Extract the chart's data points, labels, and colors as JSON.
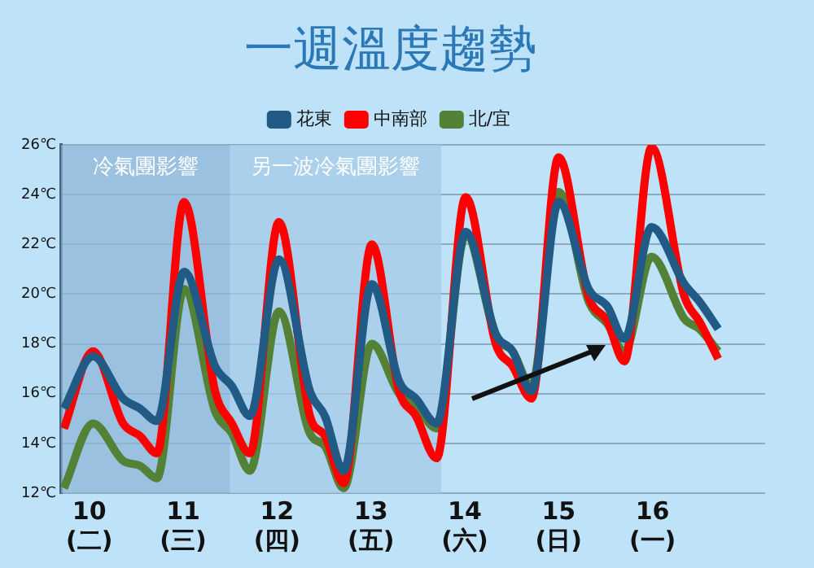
{
  "chart_data": {
    "type": "line",
    "title": "一週溫度趨勢",
    "x": [
      9.73,
      10.04,
      10.36,
      10.54,
      10.72,
      11.01,
      11.34,
      11.52,
      11.71,
      12.02,
      12.35,
      12.51,
      12.71,
      13.01,
      13.3,
      13.48,
      13.7,
      14.01,
      14.33,
      14.51,
      14.71,
      15.0,
      15.32,
      15.52,
      15.7,
      15.99,
      16.34,
      16.5,
      16.7
    ],
    "series": [
      {
        "name": "花東",
        "color": "#215a85",
        "values": [
          15.4,
          17.5,
          15.8,
          15.4,
          14.9,
          20.9,
          17.1,
          16.3,
          15.1,
          21.4,
          16.1,
          15.1,
          12.9,
          20.4,
          16.5,
          15.8,
          14.8,
          22.5,
          18.4,
          17.7,
          16.1,
          23.7,
          20.2,
          19.5,
          18.2,
          22.7,
          20.4,
          19.7,
          18.6
        ]
      },
      {
        "name": "中南部",
        "color": "#ff0000",
        "values": [
          14.6,
          17.7,
          14.8,
          14.3,
          13.6,
          23.7,
          16.1,
          14.8,
          13.6,
          22.9,
          15.1,
          14.3,
          12.4,
          22.0,
          16.1,
          15.1,
          13.4,
          23.9,
          18.0,
          17.1,
          15.8,
          25.5,
          19.9,
          18.9,
          17.3,
          25.9,
          19.9,
          18.9,
          17.4
        ]
      },
      {
        "name": "北/宜",
        "color": "#538135",
        "values": [
          12.2,
          14.8,
          13.3,
          13.1,
          12.6,
          20.2,
          15.3,
          14.4,
          12.9,
          19.3,
          14.4,
          13.9,
          12.2,
          18.0,
          16.0,
          15.5,
          14.6,
          22.4,
          18.3,
          17.7,
          16.3,
          24.1,
          19.7,
          18.8,
          17.7,
          21.5,
          19.0,
          18.6,
          17.7
        ]
      }
    ],
    "xlim": [
      9.7,
      17.2
    ],
    "xticks": [
      {
        "value": 10,
        "label": "10\n(二)"
      },
      {
        "value": 11,
        "label": "11\n(三)"
      },
      {
        "value": 12,
        "label": "12\n(四)"
      },
      {
        "value": 13,
        "label": "13\n(五)"
      },
      {
        "value": 14,
        "label": "14\n(六)"
      },
      {
        "value": 15,
        "label": "15\n(日)"
      },
      {
        "value": 16,
        "label": "16\n(一)"
      }
    ],
    "ylim": [
      12,
      26
    ],
    "yticks": [
      {
        "value": 12,
        "label": "12℃"
      },
      {
        "value": 14,
        "label": "14℃"
      },
      {
        "value": 16,
        "label": "16℃"
      },
      {
        "value": 18,
        "label": "18℃"
      },
      {
        "value": 20,
        "label": "20℃"
      },
      {
        "value": 22,
        "label": "22℃"
      },
      {
        "value": 24,
        "label": "24℃"
      },
      {
        "value": 26,
        "label": "26℃"
      }
    ],
    "bands": [
      {
        "axis": "x",
        "from": 9.7,
        "to": 11.5,
        "label": "冷氣團影響",
        "color": "#8db5d8"
      },
      {
        "axis": "x",
        "from": 11.5,
        "to": 13.75,
        "label": "另一波冷氣團影響",
        "color": "#a4c9e8"
      }
    ],
    "grid": "y",
    "legend": "top",
    "marker": "none",
    "line_style": "solid"
  }
}
